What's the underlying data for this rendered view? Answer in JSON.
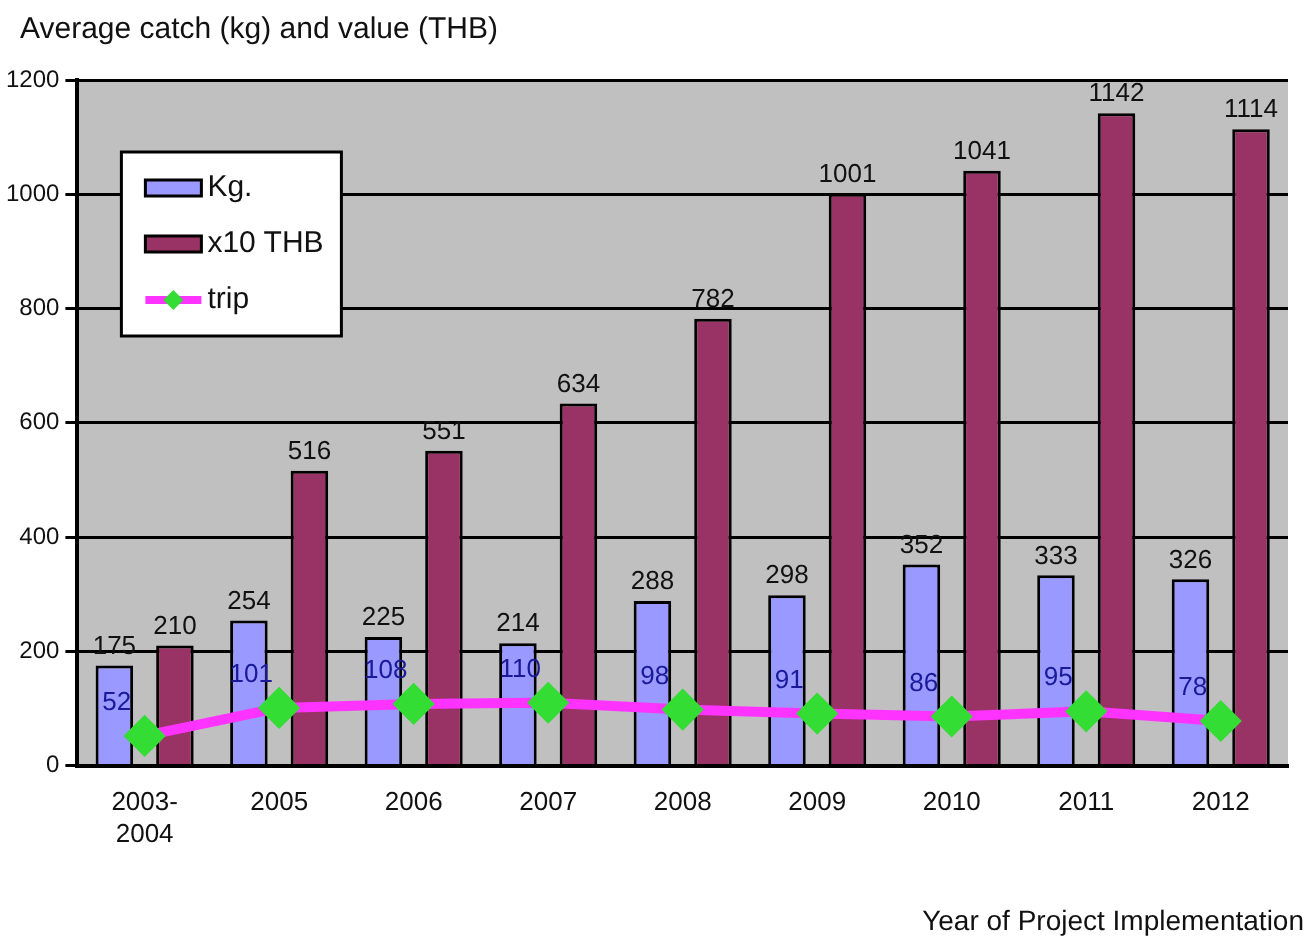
{
  "chart_data": {
    "type": "bar",
    "title": "Average catch (kg) and value (THB)",
    "xlabel": "Year of Project Implementation",
    "categories": [
      "2003-2004",
      "2005",
      "2006",
      "2007",
      "2008",
      "2009",
      "2010",
      "2011",
      "2012"
    ],
    "series": [
      {
        "name": "Kg.",
        "color": "#9999ff",
        "values": [
          175,
          254,
          225,
          214,
          288,
          298,
          352,
          333,
          326
        ]
      },
      {
        "name": "x10 THB",
        "color": "#993366",
        "values": [
          210,
          516,
          551,
          634,
          782,
          1001,
          1041,
          1142,
          1114
        ]
      },
      {
        "name": "trip",
        "type": "line",
        "color": "#ff33ff",
        "colors": [
          "#33dd33",
          "#33dd33",
          "#33dd33",
          "#33dd33",
          "#33dd33",
          "#33dd33",
          "#33dd33",
          "#33dd33",
          "#33dd33"
        ],
        "values": [
          52,
          101,
          108,
          110,
          98,
          91,
          86,
          95,
          78
        ]
      }
    ],
    "ylim": [
      0,
      1200
    ],
    "yticks": [
      0,
      200,
      400,
      600,
      800,
      1000,
      1200
    ],
    "grid": "y",
    "legend": "top left",
    "marker": "diamond",
    "data_labels": true
  }
}
